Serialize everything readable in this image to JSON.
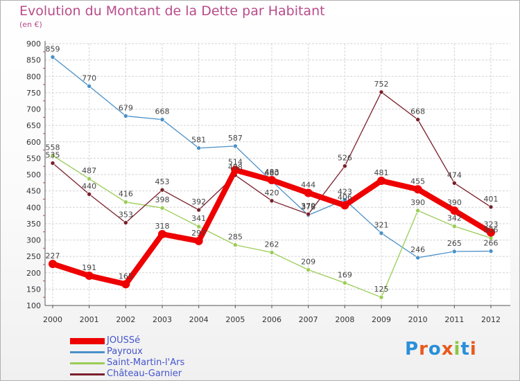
{
  "title": "Evolution du Montant de la Dette par Habitant",
  "subtitle": "(en €)",
  "chart_data": {
    "type": "line",
    "title": "Evolution du Montant de la Dette par Habitant",
    "subtitle": "(en €)",
    "xlabel": "",
    "ylabel": "",
    "x": [
      "2000",
      "2001",
      "2002",
      "2003",
      "2004",
      "2005",
      "2006",
      "2007",
      "2008",
      "2009",
      "2010",
      "2011",
      "2012"
    ],
    "ylim": [
      100,
      900
    ],
    "yticks": [
      100,
      150,
      200,
      250,
      300,
      350,
      400,
      450,
      500,
      550,
      600,
      650,
      700,
      750,
      800,
      850,
      900
    ],
    "grid": true,
    "legend_position": "bottom-left",
    "series": [
      {
        "name": "JOUSSé",
        "color": "#ee0000",
        "values": [
          227,
          191,
          165,
          318,
          297,
          514,
          483,
          444,
          406,
          481,
          455,
          390,
          323
        ]
      },
      {
        "name": "Payroux",
        "color": "#4a90c8",
        "values": [
          859,
          770,
          679,
          668,
          581,
          587,
          480,
          376,
          423,
          321,
          246,
          265,
          266
        ]
      },
      {
        "name": "Saint-Martin-l'Ars",
        "color": "#99cc55",
        "values": [
          558,
          487,
          416,
          398,
          341,
          285,
          262,
          209,
          169,
          125,
          390,
          342,
          306
        ]
      },
      {
        "name": "Château-Garnier",
        "color": "#7a1f2b",
        "values": [
          535,
          440,
          353,
          453,
          392,
          498,
          420,
          379,
          526,
          752,
          668,
          474,
          401
        ]
      }
    ]
  },
  "logo": {
    "text": "Proxiti",
    "letters": [
      "P",
      "r",
      "o",
      "x",
      "i",
      "t",
      "i"
    ],
    "colors": [
      "#2a8fd8",
      "#e85a1e",
      "#2a8fd8",
      "#e85a1e",
      "#8dc63f",
      "#2a8fd8",
      "#e85a1e"
    ]
  }
}
